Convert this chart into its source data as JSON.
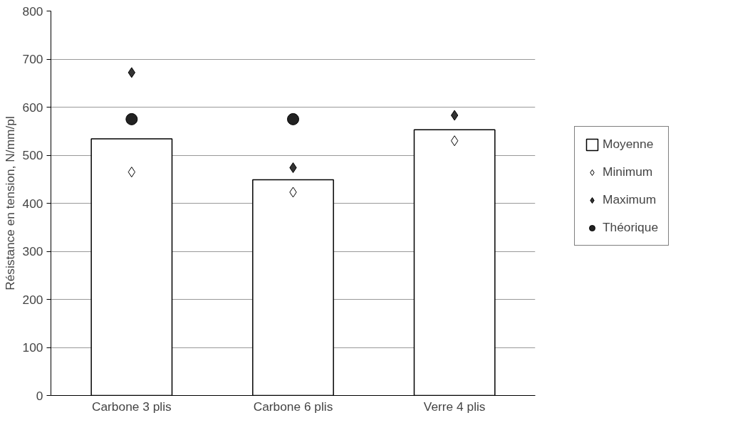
{
  "chart_data": {
    "type": "bar",
    "ylabel": "Résistance en tension, N/mm/pl",
    "categories": [
      "Carbone 3 plis",
      "Carbone 6 plis",
      "Verre 4 plis"
    ],
    "ylim": [
      0,
      800
    ],
    "yticks": [
      0,
      100,
      200,
      300,
      400,
      500,
      600,
      700,
      800
    ],
    "grid": "y",
    "legend": "right",
    "series": [
      {
        "name": "Moyenne",
        "type": "bar",
        "color": "#ffffff",
        "values": [
          534,
          449,
          553
        ]
      },
      {
        "name": "Minimum",
        "type": "scatter",
        "marker": "diamond",
        "color": "#ffffff",
        "values": [
          465,
          423,
          530
        ]
      },
      {
        "name": "Maximum",
        "type": "scatter",
        "marker": "diamond",
        "color": "#333333",
        "values": [
          672,
          474,
          583
        ]
      },
      {
        "name": "Théorique",
        "type": "scatter",
        "marker": "circle",
        "color": "#222222",
        "values": [
          575,
          575,
          null
        ]
      }
    ]
  }
}
